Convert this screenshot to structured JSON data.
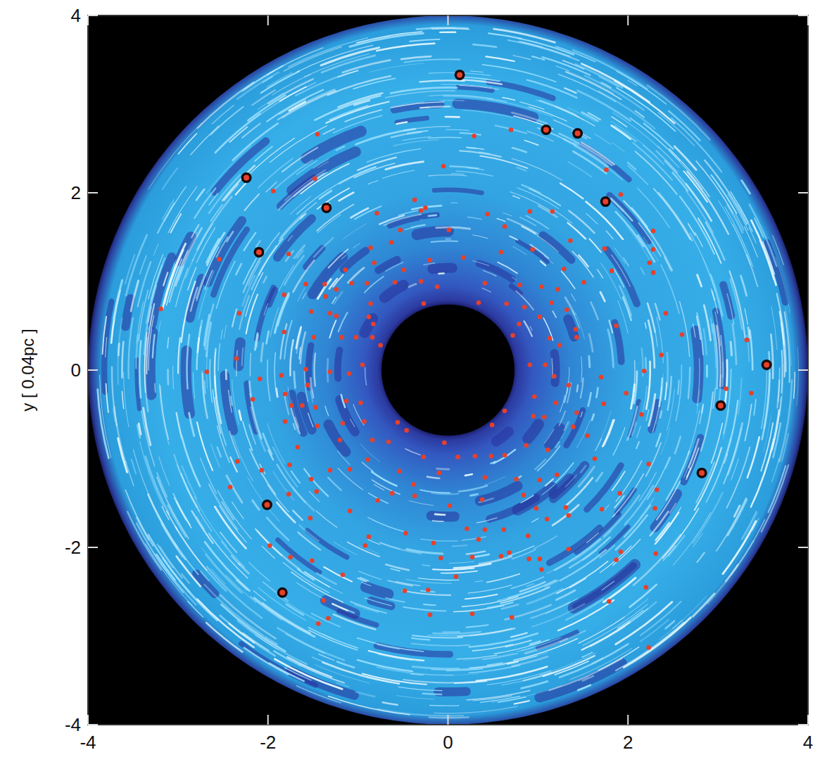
{
  "chart_data": {
    "type": "scatter",
    "y_label": "y [ 0.04pc ]",
    "xlim": [
      -4,
      4
    ],
    "ylim": [
      -4,
      4
    ],
    "xticks": [
      -4,
      -2,
      0,
      2,
      4
    ],
    "yticks": [
      -4,
      -2,
      0,
      2,
      4
    ],
    "disk_inner_radius": 0.74,
    "disk_outer_radius": 4,
    "series": [
      {
        "color": "#e8402a",
        "marker": "dot",
        "x": [
          -1.45,
          0.29,
          0.7,
          -1.48,
          -0.05,
          -1.94,
          1.76,
          1.92,
          -0.37,
          -0.3,
          -0.25,
          0.44,
          0.91,
          1.16,
          2.28,
          -2.54,
          -1.77,
          -0.79,
          -0.53,
          0.01,
          0.63,
          1.36,
          2.28,
          -0.63,
          -0.86,
          -1.14,
          -0.82,
          -0.49,
          -0.2,
          0.17,
          0.59,
          0.94,
          1.29,
          1.74,
          2.24,
          -1.37,
          -1.07,
          -0.9,
          -0.59,
          -0.3,
          -0.12,
          0.41,
          0.8,
          1.04,
          1.22,
          1.51,
          1.82,
          2.28,
          -1.82,
          -1.58,
          -1.36,
          -1.24,
          -0.86,
          -0.27,
          0.34,
          0.65,
          0.85,
          1.15,
          1.32,
          -3.19,
          -2.32,
          -1.52,
          -1.31,
          -1.24,
          -0.88,
          -0.83,
          0.79,
          1.02,
          1.42,
          1.87,
          2.42,
          2.6,
          -1.82,
          -1.49,
          -1.18,
          -1.02,
          -0.84,
          -0.75,
          0.72,
          1.13,
          1.24,
          1.43,
          2.37,
          3.09,
          3.37,
          3.32,
          -2.68,
          -2.35,
          -2.09,
          -1.85,
          -1.58,
          -1.31,
          -1.1,
          -0.95,
          0.91,
          1.08,
          1.18,
          1.34,
          1.7,
          2.18,
          -2.17,
          -1.81,
          -1.56,
          -1.47,
          -1.13,
          -0.97,
          0.96,
          1.2,
          1.43,
          1.73,
          1.98,
          -1.74,
          -1.62,
          -1.81,
          -1.45,
          -1.17,
          -0.93,
          -0.66,
          -0.56,
          -0.46,
          0.49,
          0.63,
          0.95,
          1.07,
          1.39,
          1.55,
          2.15,
          -2.34,
          -2.07,
          -1.67,
          -1.2,
          -0.84,
          -0.89,
          -0.27,
          0.11,
          0.3,
          0.48,
          0.63,
          0.87,
          1.11,
          1.63,
          2.23,
          2.32,
          -1.52,
          -1.31,
          -1.09,
          -0.54,
          -0.38,
          -0.1,
          0.41,
          0.76,
          1.02,
          1.21,
          -2.42,
          -1.76,
          -0.62,
          -0.04,
          -1.77,
          -1.46,
          -1.09,
          -0.78,
          -0.37,
          0.02,
          0.38,
          0.84,
          0.98,
          1.34,
          1.91,
          2.3,
          -1.53,
          -0.88,
          -0.47,
          -0.16,
          0.21,
          0.41,
          0.62,
          0.89,
          1.1,
          1.31,
          1.71,
          -1.75,
          -1.51,
          -0.92,
          0.34,
          0.68,
          0.9,
          1.02,
          1.34,
          1.92,
          1.87,
          -1.98,
          -0.08,
          0.27,
          0.59,
          0.09,
          -0.48,
          -0.22,
          -1.38,
          -1.33,
          -1.44,
          2.2,
          2.31,
          0.27,
          0.71,
          1.79,
          -0.2,
          2.23,
          -1.17,
          1.04
        ],
        "values": [
          2.66,
          2.64,
          2.71,
          2.16,
          2.3,
          2.02,
          2.26,
          1.98,
          1.92,
          1.8,
          1.83,
          1.76,
          1.79,
          1.79,
          1.57,
          1.25,
          1.31,
          1.77,
          1.58,
          1.58,
          1.62,
          1.46,
          1.36,
          1.44,
          1.38,
          1.13,
          1.21,
          1.13,
          1.24,
          1.27,
          1.33,
          1.36,
          1.14,
          1.37,
          1.21,
          0.97,
          0.98,
          0.98,
          0.99,
          1.0,
          0.94,
          0.98,
          0.96,
          0.94,
          0.91,
          0.99,
          1.12,
          1.1,
          0.85,
          0.97,
          0.83,
          0.91,
          0.75,
          0.75,
          0.76,
          0.75,
          0.71,
          0.76,
          0.68,
          0.69,
          0.64,
          0.66,
          0.64,
          0.61,
          0.6,
          0.52,
          0.52,
          0.6,
          0.46,
          0.5,
          0.64,
          0.4,
          0.43,
          0.37,
          0.37,
          0.37,
          0.37,
          0.28,
          0.39,
          0.36,
          0.28,
          0.37,
          0.17,
          -0.21,
          -0.26,
          0.34,
          -0.02,
          0.13,
          -0.1,
          -0.06,
          0.01,
          -0.02,
          -0.04,
          0.06,
          0.06,
          0.06,
          -0.07,
          -0.17,
          -0.08,
          -0.01,
          -0.33,
          -0.27,
          -0.17,
          -0.42,
          -0.35,
          -0.37,
          -0.3,
          -0.37,
          -0.48,
          -0.38,
          -0.26,
          -0.4,
          -0.4,
          -0.58,
          -0.63,
          -0.6,
          -0.58,
          -0.81,
          -0.59,
          -0.68,
          -0.62,
          -0.46,
          -0.52,
          -0.53,
          -0.64,
          -0.74,
          -0.5,
          -1.03,
          -1.13,
          -0.87,
          -0.79,
          -0.79,
          -1.01,
          -0.98,
          -0.98,
          -0.97,
          -0.97,
          -0.96,
          -0.85,
          -0.9,
          -1.0,
          -1.06,
          -1.35,
          -1.23,
          -1.13,
          -1.12,
          -1.14,
          -1.29,
          -1.16,
          -1.21,
          -1.23,
          -1.24,
          -1.18,
          -1.32,
          -1.07,
          -1.39,
          -0.82,
          -1.4,
          -1.37,
          -1.59,
          -1.47,
          -1.42,
          -1.53,
          -1.46,
          -1.41,
          -1.56,
          -1.64,
          -1.39,
          -1.56,
          -1.67,
          -1.88,
          -1.84,
          -1.95,
          -1.79,
          -1.8,
          -1.8,
          -1.87,
          -1.68,
          -1.55,
          -1.57,
          -2.11,
          -2.15,
          -1.98,
          -1.91,
          -2.06,
          -2.13,
          -2.13,
          -2.02,
          -2.05,
          -2.14,
          -1.98,
          -2.12,
          -2.11,
          -2.1,
          -2.33,
          -2.49,
          -2.48,
          -2.6,
          -2.8,
          -2.86,
          -2.45,
          -2.07,
          -2.75,
          -2.79,
          -2.61,
          -2.76,
          -3.13,
          -2.31,
          -2.25
        ]
      },
      {
        "color": "#e8402a",
        "marker": "ringed",
        "x": [
          0.13,
          1.09,
          1.44,
          -2.24,
          -1.35,
          -2.1,
          3.54,
          3.03,
          2.82,
          -1.84,
          1.75,
          -2.01
        ],
        "values": [
          3.33,
          2.71,
          2.67,
          2.17,
          1.83,
          1.33,
          0.06,
          -0.4,
          -1.16,
          -2.51,
          1.9,
          -1.52
        ]
      }
    ]
  }
}
